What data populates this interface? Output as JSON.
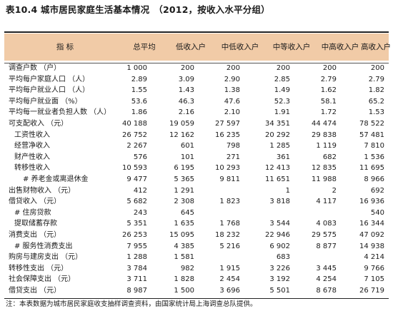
{
  "title": "表10.4  城市居民家庭生活基本情况",
  "subtitle": "（2012，按收入水平分组）",
  "columns": [
    "指  标",
    "总平均",
    "低收入户",
    "中低收入户",
    "中等收入户",
    "中高收入户",
    "高收入户"
  ],
  "rows": [
    {
      "label": "调查户数 （户）",
      "indent": 0,
      "values": [
        "1 000",
        "200",
        "200",
        "200",
        "200",
        "200"
      ]
    },
    {
      "label": "平均每户家庭人口 （人）",
      "indent": 0,
      "values": [
        "2.89",
        "3.09",
        "2.90",
        "2.85",
        "2.79",
        "2.79"
      ]
    },
    {
      "label": "平均每户就业人口 （人）",
      "indent": 0,
      "values": [
        "1.55",
        "1.43",
        "1.38",
        "1.49",
        "1.62",
        "1.82"
      ]
    },
    {
      "label": "平均每户就业面 （%）",
      "indent": 0,
      "values": [
        "53.6",
        "46.3",
        "47.6",
        "52.3",
        "58.1",
        "65.2"
      ]
    },
    {
      "label": "平均每一就业者负担人数 （人）",
      "indent": 0,
      "values": [
        "1.86",
        "2.16",
        "2.10",
        "1.91",
        "1.72",
        "1.53"
      ]
    },
    {
      "label": "可支配收入 （元）",
      "indent": 0,
      "values": [
        "40 188",
        "19 059",
        "27 597",
        "34 351",
        "44 474",
        "78 522"
      ]
    },
    {
      "label": "工资性收入",
      "indent": 1,
      "values": [
        "26 752",
        "12 162",
        "16 235",
        "20 292",
        "29 838",
        "57 481"
      ]
    },
    {
      "label": "经营净收入",
      "indent": 1,
      "values": [
        "2 267",
        "601",
        "798",
        "1 285",
        "1 119",
        "7 810"
      ]
    },
    {
      "label": "财产性收入",
      "indent": 1,
      "values": [
        "576",
        "101",
        "271",
        "361",
        "682",
        "1 536"
      ]
    },
    {
      "label": "转移性收入",
      "indent": 1,
      "values": [
        "10 593",
        "6 195",
        "10 293",
        "12 413",
        "12 835",
        "11 695"
      ]
    },
    {
      "label": "# 养老金或离退休金",
      "indent": 2,
      "values": [
        "9 477",
        "5 365",
        "9 811",
        "11 651",
        "11 988",
        "8 966"
      ]
    },
    {
      "label": "出售财物收入 （元）",
      "indent": 0,
      "values": [
        "412",
        "1 291",
        "",
        "1",
        "2",
        "692"
      ]
    },
    {
      "label": "借贷收入 （元）",
      "indent": 0,
      "values": [
        "5 682",
        "2 308",
        "1 823",
        "3 818",
        "4 117",
        "16 936"
      ]
    },
    {
      "label": "# 住房贷款",
      "indent": 1,
      "values": [
        "243",
        "645",
        "",
        "",
        "",
        "540"
      ]
    },
    {
      "label": "提取储蓄存款",
      "indent": 1,
      "values": [
        "5 351",
        "1 635",
        "1 768",
        "3 544",
        "4 083",
        "16 344"
      ]
    },
    {
      "label": "消费支出 （元）",
      "indent": 0,
      "values": [
        "26 253",
        "15 095",
        "18 232",
        "22 946",
        "29 575",
        "47 092"
      ]
    },
    {
      "label": "# 服务性消费支出",
      "indent": 1,
      "values": [
        "7 955",
        "4 385",
        "5 216",
        "6 902",
        "8 877",
        "14 938"
      ]
    },
    {
      "label": "购房与建房支出 （元）",
      "indent": 0,
      "values": [
        "1 288",
        "1 581",
        "",
        "683",
        "",
        "4 214"
      ]
    },
    {
      "label": "转移性支出 （元）",
      "indent": 0,
      "values": [
        "3 784",
        "982",
        "1 915",
        "3 226",
        "3 445",
        "9 766"
      ]
    },
    {
      "label": "社会保障支出 （元）",
      "indent": 0,
      "values": [
        "3 711",
        "1 828",
        "2 454",
        "3 192",
        "4 254",
        "7 105"
      ]
    },
    {
      "label": "借贷支出 （元）",
      "indent": 0,
      "values": [
        "8 987",
        "1 500",
        "3 696",
        "5 501",
        "8 678",
        "26 719"
      ]
    }
  ],
  "note": "注：本表数据为城市居民家庭收支抽样调查资料，由国家统计局上海调查总队提供。",
  "colors": {
    "header_bg": "#f1cba7"
  }
}
